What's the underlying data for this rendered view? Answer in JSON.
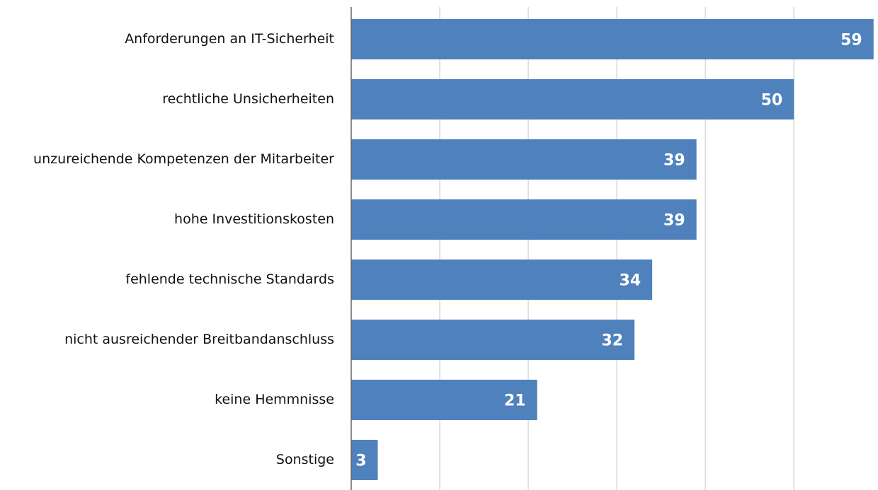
{
  "chart_data": {
    "type": "hbar",
    "categories": [
      "Anforderungen an IT-Sicherheit",
      "rechtliche Unsicherheiten",
      "unzureichende Kompetenzen der Mitarbeiter",
      "hohe Investitionskosten",
      "fehlende technische Standards",
      "nicht ausreichender Breitbandanschluss",
      "keine Hemmnisse",
      "Sonstige"
    ],
    "values": [
      59,
      50,
      39,
      39,
      34,
      32,
      21,
      3
    ],
    "color": "#4f81bd",
    "xlim": [
      0,
      59.5
    ],
    "xticks": [
      0,
      10,
      20,
      30,
      40,
      50
    ],
    "grid": true
  }
}
